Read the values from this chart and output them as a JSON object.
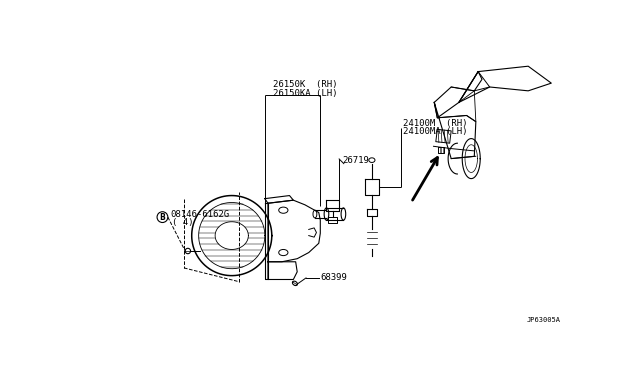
{
  "bg_color": "#ffffff",
  "fig_width": 6.4,
  "fig_height": 3.72,
  "labels": {
    "part1": "26150K  (RH)",
    "part1b": "26150KA (LH)",
    "part2": "24100M  (RH)",
    "part2b": "24100MA (LH)",
    "part3": "26719",
    "part4": "08146-6162G",
    "part4b": "( 4)",
    "part5": "68399",
    "ref": "JP63005A"
  },
  "lc": "#000000",
  "fs": 6.5
}
